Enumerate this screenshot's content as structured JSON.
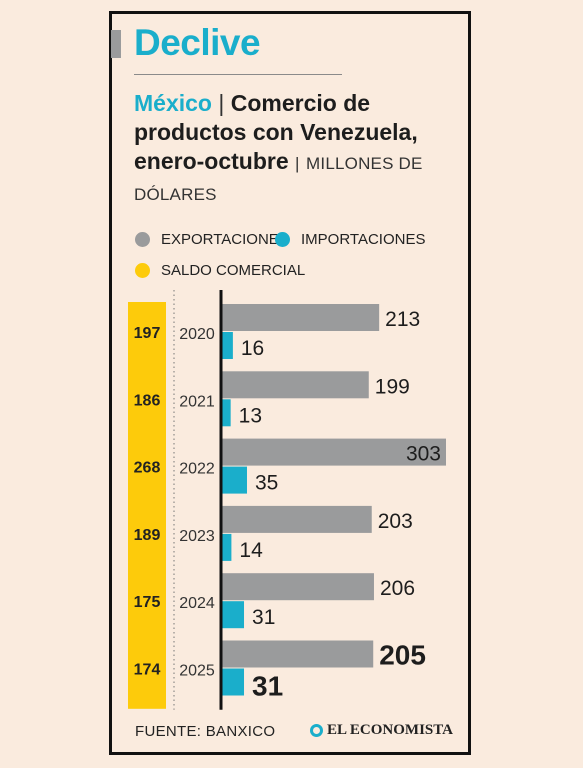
{
  "header": {
    "kicker": "Declive",
    "title_country": "México",
    "title_separator": "|",
    "title_main": "Comercio de productos con Venezuela, enero-octubre",
    "title_units_separator": "|",
    "title_units": "MILLONES DE DÓLARES"
  },
  "legend": {
    "exports": "EXPORTACIONES",
    "imports": "IMPORTACIONES",
    "balance": "SALDO COMERCIAL"
  },
  "colors": {
    "exports": "#9a9b9c",
    "imports": "#1aaecb",
    "balance": "#fdcb0b",
    "accent": "#1aaecb"
  },
  "chart_data": {
    "type": "bar",
    "orientation": "horizontal",
    "categories": [
      "2020",
      "2021",
      "2022",
      "2023",
      "2024",
      "2025"
    ],
    "series": [
      {
        "name": "EXPORTACIONES",
        "values": [
          213,
          199,
          303,
          203,
          206,
          205
        ]
      },
      {
        "name": "IMPORTACIONES",
        "values": [
          16,
          13,
          35,
          14,
          31,
          31
        ]
      },
      {
        "name": "SALDO COMERCIAL",
        "values": [
          197,
          186,
          268,
          189,
          175,
          174
        ]
      }
    ],
    "grid": false,
    "legend_position": "top"
  },
  "footer": {
    "source": "FUENTE: BANXICO",
    "brand": "EL ECONOMISTA"
  }
}
